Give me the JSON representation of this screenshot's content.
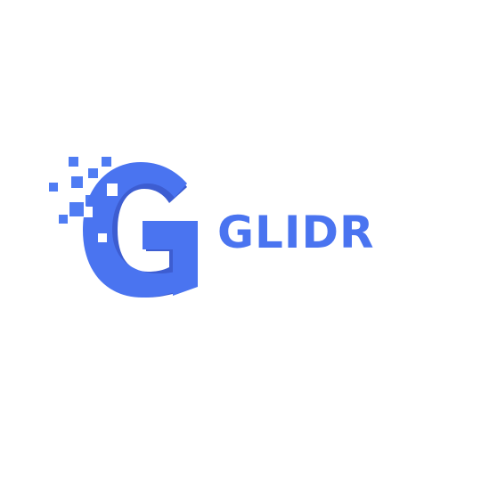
{
  "brand": {
    "name": "GLIDR",
    "primary_color": "#4a74f0",
    "shadow_color": "#3d5dd1",
    "pixel_color": "#4f7cf3",
    "icon": "g-pixel-logo-icon"
  }
}
